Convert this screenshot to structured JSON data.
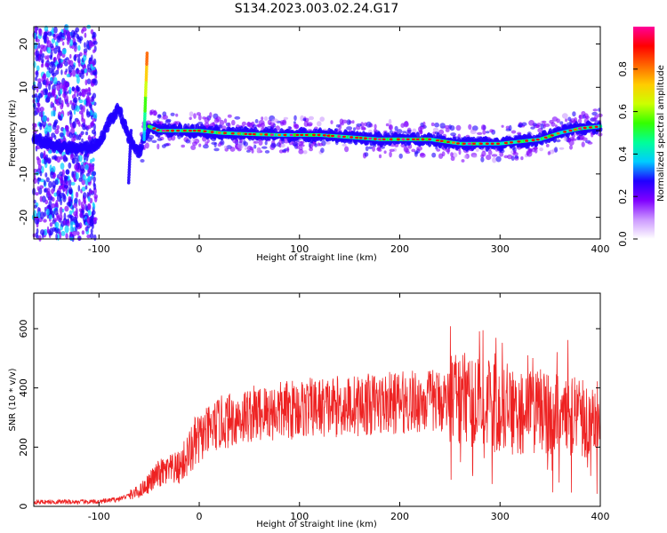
{
  "title": "S134.2023.003.02.24.G17",
  "chart_data": [
    {
      "type": "heatmap",
      "xlabel": "Height of straight line (km)",
      "ylabel": "Frequency (Hz)",
      "xlim": [
        -165,
        400
      ],
      "ylim": [
        -25,
        24
      ],
      "xticks": [
        "-100",
        "0",
        "100",
        "200",
        "300",
        "400"
      ],
      "yticks": [
        "-20",
        "-10",
        "0",
        "10",
        "20"
      ],
      "colorbar": {
        "label": "Normalized spectral amplitude",
        "range": [
          0,
          1
        ],
        "ticks": [
          "0.0",
          "0.2",
          "0.4",
          "0.6",
          "0.8"
        ],
        "colors": [
          "#ffffff",
          "#cc99ff",
          "#8000ff",
          "#2000ff",
          "#00ccff",
          "#00ff99",
          "#33ff00",
          "#ccff00",
          "#ffcc00",
          "#ff6600",
          "#ff0000",
          "#ff0099"
        ]
      },
      "ridge": {
        "x": [
          -165,
          -150,
          -130,
          -110,
          -100,
          -90,
          -80,
          -70,
          -60,
          -55,
          -50,
          -40,
          -20,
          0,
          20,
          50,
          80,
          100,
          120,
          150,
          180,
          200,
          230,
          260,
          280,
          300,
          320,
          340,
          360,
          380,
          400
        ],
        "y": [
          -2,
          -3,
          -4,
          -4,
          -3,
          2,
          5,
          -2,
          -5,
          -2,
          1,
          0,
          0,
          0,
          -0.5,
          -0.8,
          -1,
          -1,
          -1,
          -1.5,
          -2,
          -2,
          -2,
          -3,
          -3,
          -3,
          -2.5,
          -2,
          -0.5,
          0.5,
          1
        ]
      }
    },
    {
      "type": "line",
      "xlabel": "Height of straight line (km)",
      "ylabel": "SNR (10 * v/v)",
      "xlim": [
        -165,
        400
      ],
      "ylim": [
        0,
        720
      ],
      "xticks": [
        "-100",
        "0",
        "100",
        "200",
        "300",
        "400"
      ],
      "yticks": [
        "0",
        "200",
        "400",
        "600"
      ],
      "color": "#ee2222",
      "envelope": {
        "x": [
          -165,
          -100,
          -80,
          -60,
          -40,
          -20,
          0,
          20,
          50,
          100,
          150,
          200,
          250,
          280,
          300,
          320,
          340,
          360,
          380,
          400
        ],
        "y": [
          15,
          15,
          25,
          50,
          110,
          130,
          230,
          280,
          310,
          330,
          340,
          350,
          360,
          360,
          320,
          310,
          320,
          320,
          300,
          290
        ]
      }
    }
  ]
}
